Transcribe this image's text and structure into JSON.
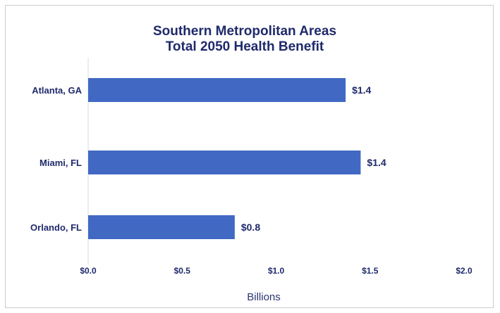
{
  "chart_data": {
    "type": "bar",
    "orientation": "horizontal",
    "title_lines": [
      "Southern Metropolitan Areas",
      "Total 2050 Health Benefit"
    ],
    "categories": [
      "Atlanta, GA",
      "Miami, FL",
      "Orlando, FL"
    ],
    "values": [
      1.37,
      1.45,
      0.78
    ],
    "data_labels": [
      "$1.4",
      "$1.4",
      "$0.8"
    ],
    "xlabel": "Billions",
    "ylabel": "",
    "xlim": [
      0,
      2.0
    ],
    "x_ticks": [
      0,
      0.5,
      1.0,
      1.5,
      2.0
    ],
    "x_tick_labels": [
      "$0.0",
      "$0.5",
      "$1.0",
      "$1.5",
      "$2.0"
    ],
    "grid": false,
    "legend": "none",
    "colors": {
      "bar": "#4169c4",
      "text": "#1f2a6b",
      "axis": "#d5d8de"
    }
  }
}
